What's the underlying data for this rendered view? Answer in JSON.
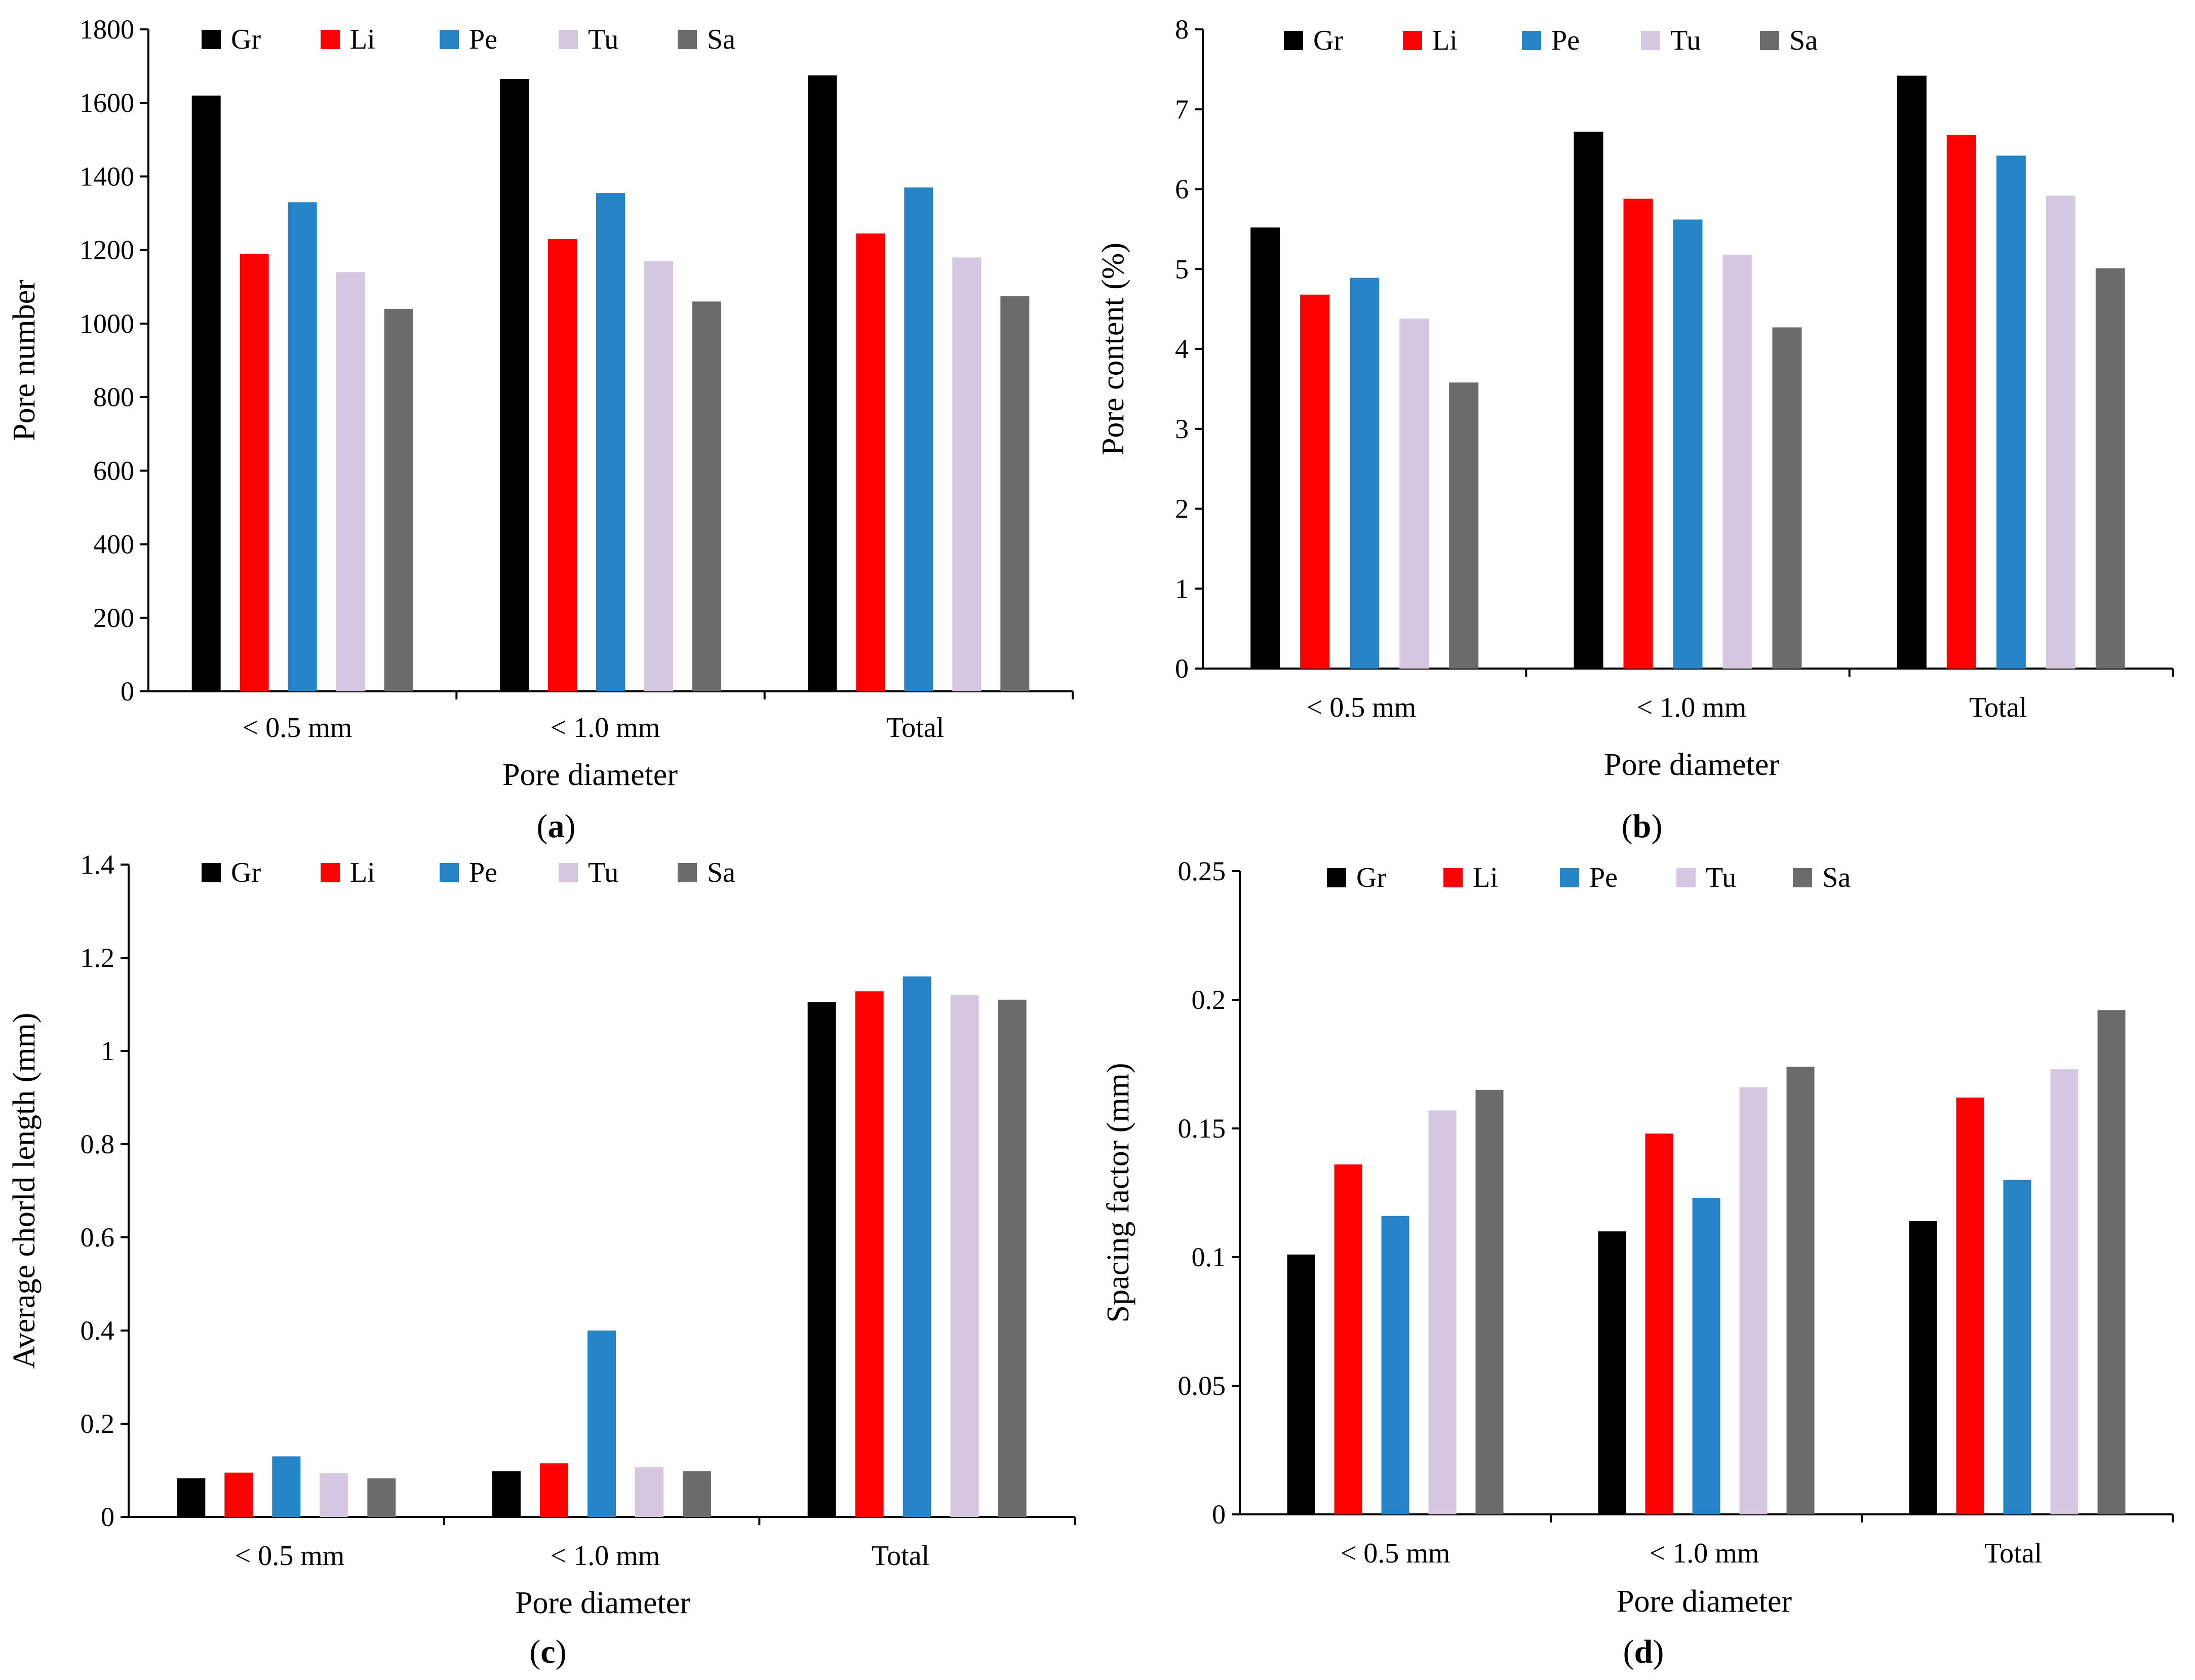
{
  "series_colors": {
    "Gr": "#000000",
    "Li": "#ff0000",
    "Pe": "#2683c6",
    "Tu": "#d5c8e0",
    "Sa": "#6b6b6b"
  },
  "chart_data": [
    {
      "id": "a",
      "type": "bar",
      "panel_label": {
        "open": "(",
        "letter": "a",
        "close": ")"
      },
      "title": "",
      "xlabel": "Pore diameter",
      "ylabel": "Pore number",
      "categories": [
        "< 0.5 mm",
        "< 1.0 mm",
        "Total"
      ],
      "ylim": [
        0,
        1800
      ],
      "yticks": [
        0,
        200,
        400,
        600,
        800,
        1000,
        1200,
        1400,
        1600,
        1800
      ],
      "ytick_labels": [
        "0",
        "200",
        "400",
        "600",
        "800",
        "1000",
        "1200",
        "1400",
        "1600",
        "1800"
      ],
      "legend": [
        "Gr",
        "Li",
        "Pe",
        "Tu",
        "Sa"
      ],
      "legend_position": "top",
      "series": [
        {
          "name": "Gr",
          "values": [
            1620,
            1665,
            1675
          ]
        },
        {
          "name": "Li",
          "values": [
            1190,
            1230,
            1245
          ]
        },
        {
          "name": "Pe",
          "values": [
            1330,
            1355,
            1370
          ]
        },
        {
          "name": "Tu",
          "values": [
            1140,
            1170,
            1180
          ]
        },
        {
          "name": "Sa",
          "values": [
            1040,
            1060,
            1075
          ]
        }
      ]
    },
    {
      "id": "b",
      "type": "bar",
      "panel_label": {
        "open": "(",
        "letter": "b",
        "close": ")"
      },
      "title": "",
      "xlabel": "Pore diameter",
      "ylabel": "Pore content (%)",
      "categories": [
        "< 0.5 mm",
        "< 1.0 mm",
        "Total"
      ],
      "ylim": [
        0,
        8
      ],
      "yticks": [
        0,
        1,
        2,
        3,
        4,
        5,
        6,
        7,
        8
      ],
      "ytick_labels": [
        "0",
        "1",
        "2",
        "3",
        "4",
        "5",
        "6",
        "7",
        "8"
      ],
      "legend": [
        "Gr",
        "Li",
        "Pe",
        "Tu",
        "Sa"
      ],
      "legend_position": "top",
      "series": [
        {
          "name": "Gr",
          "values": [
            5.52,
            6.72,
            7.42
          ]
        },
        {
          "name": "Li",
          "values": [
            4.68,
            5.88,
            6.68
          ]
        },
        {
          "name": "Pe",
          "values": [
            4.89,
            5.62,
            6.42
          ]
        },
        {
          "name": "Tu",
          "values": [
            4.38,
            5.18,
            5.92
          ]
        },
        {
          "name": "Sa",
          "values": [
            3.58,
            4.27,
            5.01
          ]
        }
      ]
    },
    {
      "id": "c",
      "type": "bar",
      "panel_label": {
        "open": "(",
        "letter": "c",
        "close": ")"
      },
      "title": "",
      "xlabel": "Pore diameter",
      "ylabel": "Average chorld length (mm)",
      "categories": [
        "< 0.5 mm",
        "< 1.0 mm",
        "Total"
      ],
      "ylim": [
        0,
        1.4
      ],
      "yticks": [
        0,
        0.2,
        0.4,
        0.6,
        0.8,
        1,
        1.2,
        1.4
      ],
      "ytick_labels": [
        "0",
        "0.2",
        "0.4",
        "0.6",
        "0.8",
        "1",
        "1.2",
        "1.4"
      ],
      "legend": [
        "Gr",
        "Li",
        "Pe",
        "Tu",
        "Sa"
      ],
      "legend_position": "top",
      "series": [
        {
          "name": "Gr",
          "values": [
            0.083,
            0.098,
            1.105
          ]
        },
        {
          "name": "Li",
          "values": [
            0.095,
            0.115,
            1.128
          ]
        },
        {
          "name": "Pe",
          "values": [
            0.13,
            0.4,
            1.16
          ]
        },
        {
          "name": "Tu",
          "values": [
            0.094,
            0.107,
            1.12
          ]
        },
        {
          "name": "Sa",
          "values": [
            0.083,
            0.098,
            1.11
          ]
        }
      ]
    },
    {
      "id": "d",
      "type": "bar",
      "panel_label": {
        "open": "(",
        "letter": "d",
        "close": ")"
      },
      "title": "",
      "xlabel": "Pore diameter",
      "ylabel": "Spacing factor (mm)",
      "categories": [
        "< 0.5 mm",
        "< 1.0 mm",
        "Total"
      ],
      "ylim": [
        0,
        0.25
      ],
      "yticks": [
        0,
        0.05,
        0.1,
        0.15,
        0.2,
        0.25
      ],
      "ytick_labels": [
        "0",
        "0.05",
        "0.1",
        "0.15",
        "0.2",
        "0.25"
      ],
      "legend": [
        "Gr",
        "Li",
        "Pe",
        "Tu",
        "Sa"
      ],
      "legend_position": "top",
      "series": [
        {
          "name": "Gr",
          "values": [
            0.101,
            0.11,
            0.114
          ]
        },
        {
          "name": "Li",
          "values": [
            0.136,
            0.148,
            0.162
          ]
        },
        {
          "name": "Pe",
          "values": [
            0.116,
            0.123,
            0.13
          ]
        },
        {
          "name": "Tu",
          "values": [
            0.157,
            0.166,
            0.173
          ]
        },
        {
          "name": "Sa",
          "values": [
            0.165,
            0.174,
            0.196
          ]
        }
      ]
    }
  ]
}
